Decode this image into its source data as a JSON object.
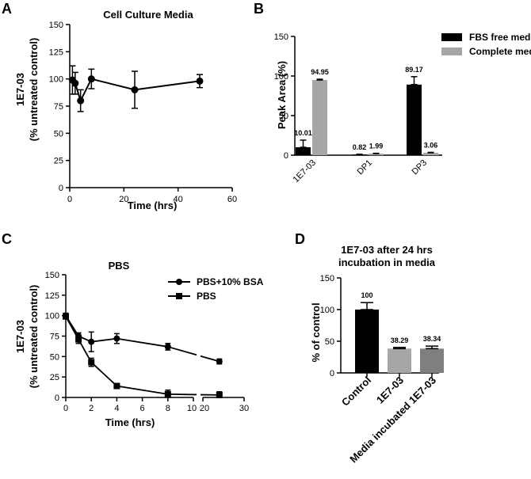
{
  "chart_data": [
    {
      "panel": "A",
      "type": "line",
      "title": "Cell Culture Media",
      "xlabel": "Time (hrs)",
      "ylabel": "1E7-03",
      "ylabel2": "(% untreated control)",
      "xlim": [
        0,
        60
      ],
      "ylim": [
        0,
        150
      ],
      "xticks": [
        0,
        20,
        40,
        60
      ],
      "yticks": [
        0,
        25,
        50,
        75,
        100,
        125,
        150
      ],
      "x": [
        1,
        2,
        4,
        8,
        24,
        48
      ],
      "y": [
        99,
        96,
        80,
        100,
        90,
        98
      ],
      "err": [
        13,
        10,
        10,
        9,
        17,
        6
      ]
    },
    {
      "panel": "B",
      "type": "bar",
      "ylabel": "Peak Area (%)",
      "ylim": [
        0,
        150
      ],
      "yticks": [
        0,
        50,
        100,
        150
      ],
      "categories": [
        "1E7-03",
        "DP1",
        "DP3"
      ],
      "series": [
        {
          "name": "FBS free media",
          "color": "#000000",
          "values": [
            10.01,
            0.82,
            89.17
          ],
          "err": [
            9,
            0.4,
            10
          ],
          "labels": [
            "10.01",
            "0.82",
            "89.17"
          ]
        },
        {
          "name": "Complete media",
          "color": "#a6a6a6",
          "values": [
            94.95,
            1.99,
            3.06
          ],
          "err": [
            1,
            0.4,
            0.5
          ],
          "labels": [
            "94.95",
            "1.99",
            "3.06"
          ]
        }
      ]
    },
    {
      "panel": "C",
      "type": "line",
      "title": "PBS",
      "xlabel": "Time (hrs)",
      "ylabel": "1E7-03",
      "ylabel2": "(% untreated control)",
      "ylim": [
        0,
        150
      ],
      "yticks": [
        0,
        25,
        50,
        75,
        100,
        125,
        150
      ],
      "xticks": [
        "0",
        "2",
        "4",
        "6",
        "8",
        "10",
        "20",
        "30"
      ],
      "x_break": "10-20",
      "series": [
        {
          "name": "PBS+10% BSA",
          "marker": "circle",
          "x": [
            0,
            1,
            2,
            4,
            8,
            24
          ],
          "y": [
            100,
            75,
            68,
            72,
            62,
            44
          ],
          "err": [
            3,
            4,
            12,
            6,
            4,
            3
          ]
        },
        {
          "name": "PBS",
          "marker": "square",
          "x": [
            0,
            1,
            2,
            4,
            8,
            24
          ],
          "y": [
            99,
            71,
            43,
            14,
            4,
            3
          ],
          "err": [
            3,
            5,
            5,
            2,
            5,
            4
          ]
        }
      ]
    },
    {
      "panel": "D",
      "type": "bar",
      "title": "1E7-03 after 24 hrs",
      "title2": "incubation in media",
      "ylabel": "% of control",
      "ylim": [
        0,
        150
      ],
      "yticks": [
        0,
        50,
        100,
        150
      ],
      "categories": [
        "Control",
        "1E7-03",
        "Media incubated 1E7-03"
      ],
      "values": [
        100,
        38.29,
        38.34
      ],
      "err": [
        11,
        2,
        4
      ],
      "labels": [
        "100",
        "38.29",
        "38.34"
      ],
      "colors": [
        "#000000",
        "#a6a6a6",
        "#7f7f7f"
      ]
    }
  ]
}
